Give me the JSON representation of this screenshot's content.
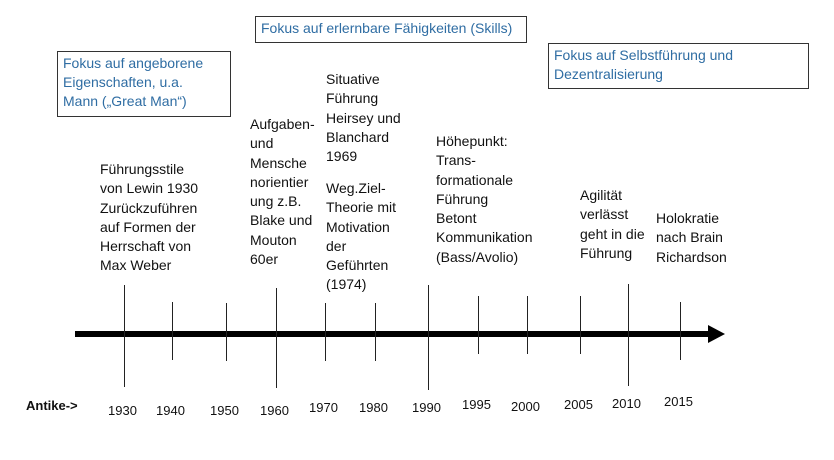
{
  "focus_boxes": [
    {
      "text": "Fokus auf angeborene\nEigenschaften, u.a.\nMann („Great Man“)"
    },
    {
      "text": "Fokus auf erlernbare Fähigkeiten (Skills)"
    },
    {
      "text": "Fokus auf Selbstführung und\nDezentralisierung"
    }
  ],
  "notes": [
    "Führungsstile\nvon Lewin 1930\nZurückzuführen\nauf Formen der\nHerrschaft von\nMax Weber",
    "Aufgaben-\nund\nMensche\nnorientier\nung z.B.\nBlake und\nMouton\n60er",
    "Situative\nFührung\nHeirsey und\nBlanchard\n1969",
    "Weg.Ziel-\nTheorie mit\nMotivation\nder\nGeführten\n(1974)",
    "Höhepunkt:\nTrans-\nformationale\nFührung\nBetont\nKommunikation\n(Bass/Avolio)",
    "Agilität\nverlässt\ngeht in die\nFührung",
    "Holokratie\nnach Brain\nRichardson"
  ],
  "timeline": {
    "start_label": "Antike->",
    "years": [
      "1930",
      "1940",
      "1950",
      "1960",
      "1970",
      "1980",
      "1990",
      "1995",
      "2000",
      "2005",
      "2010",
      "2015"
    ]
  }
}
